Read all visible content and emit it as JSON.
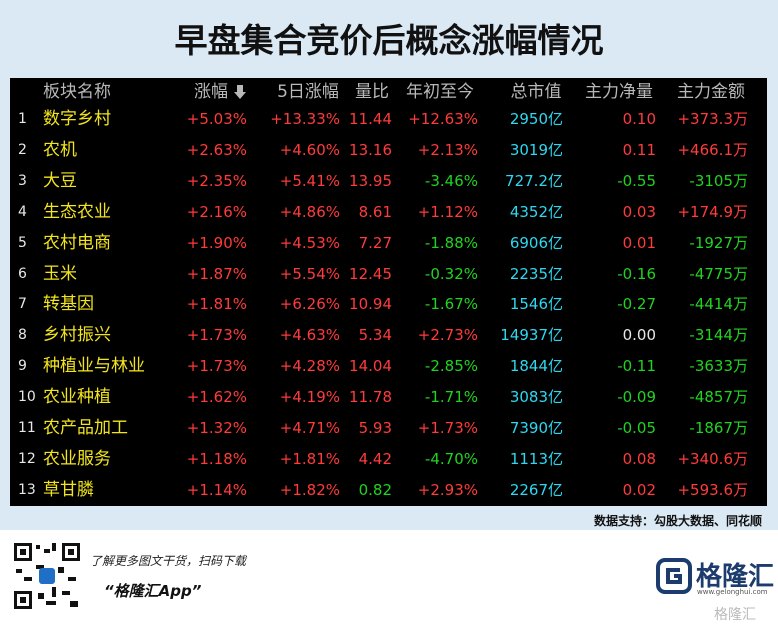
{
  "header": {
    "title": "早盘集合竞价后概念涨幅情况"
  },
  "table": {
    "columns": [
      "板块名称",
      "涨幅",
      "5日涨幅",
      "量比",
      "年初至今",
      "总市值",
      "主力净量",
      "主力金额"
    ],
    "rows": [
      [
        "1",
        "数字乡村",
        "+5.03%",
        "+13.33%",
        "11.44",
        "+12.63%",
        "2950亿",
        "0.10",
        "+373.3万"
      ],
      [
        "2",
        "农机",
        "+2.63%",
        "+4.60%",
        "13.16",
        "+2.13%",
        "3019亿",
        "0.11",
        "+466.1万"
      ],
      [
        "3",
        "大豆",
        "+2.35%",
        "+5.41%",
        "13.95",
        "-3.46%",
        "727.2亿",
        "-0.55",
        "-3105万"
      ],
      [
        "4",
        "生态农业",
        "+2.16%",
        "+4.86%",
        "8.61",
        "+1.12%",
        "4352亿",
        "0.03",
        "+174.9万"
      ],
      [
        "5",
        "农村电商",
        "+1.90%",
        "+4.53%",
        "7.27",
        "-1.88%",
        "6906亿",
        "0.01",
        "-1927万"
      ],
      [
        "6",
        "玉米",
        "+1.87%",
        "+5.54%",
        "12.45",
        "-0.32%",
        "2235亿",
        "-0.16",
        "-4775万"
      ],
      [
        "7",
        "转基因",
        "+1.81%",
        "+6.26%",
        "10.94",
        "-1.67%",
        "1546亿",
        "-0.27",
        "-4414万"
      ],
      [
        "8",
        "乡村振兴",
        "+1.73%",
        "+4.63%",
        "5.34",
        "+2.73%",
        "14937亿",
        "0.00",
        "-3144万"
      ],
      [
        "9",
        "种植业与林业",
        "+1.73%",
        "+4.28%",
        "14.04",
        "-2.85%",
        "1844亿",
        "-0.11",
        "-3633万"
      ],
      [
        "10",
        "农业种植",
        "+1.62%",
        "+4.19%",
        "11.78",
        "-1.71%",
        "3083亿",
        "-0.09",
        "-4857万"
      ],
      [
        "11",
        "农产品加工",
        "+1.32%",
        "+4.71%",
        "5.93",
        "+1.73%",
        "7390亿",
        "-0.05",
        "-1867万"
      ],
      [
        "12",
        "农业服务",
        "+1.18%",
        "+1.81%",
        "4.42",
        "-4.70%",
        "1113亿",
        "0.08",
        "+340.6万"
      ],
      [
        "13",
        "草甘膦",
        "+1.14%",
        "+1.82%",
        "0.82",
        "+2.93%",
        "2267亿",
        "0.02",
        "+593.6万"
      ]
    ]
  },
  "footer": {
    "source": "数据支持：勾股大数据、同花顺",
    "promo": "了解更多图文干货，扫码下载",
    "app": "“格隆汇App”",
    "logo": "格隆汇",
    "site": "www.gelonghui.com",
    "watermark": "格隆汇"
  }
}
